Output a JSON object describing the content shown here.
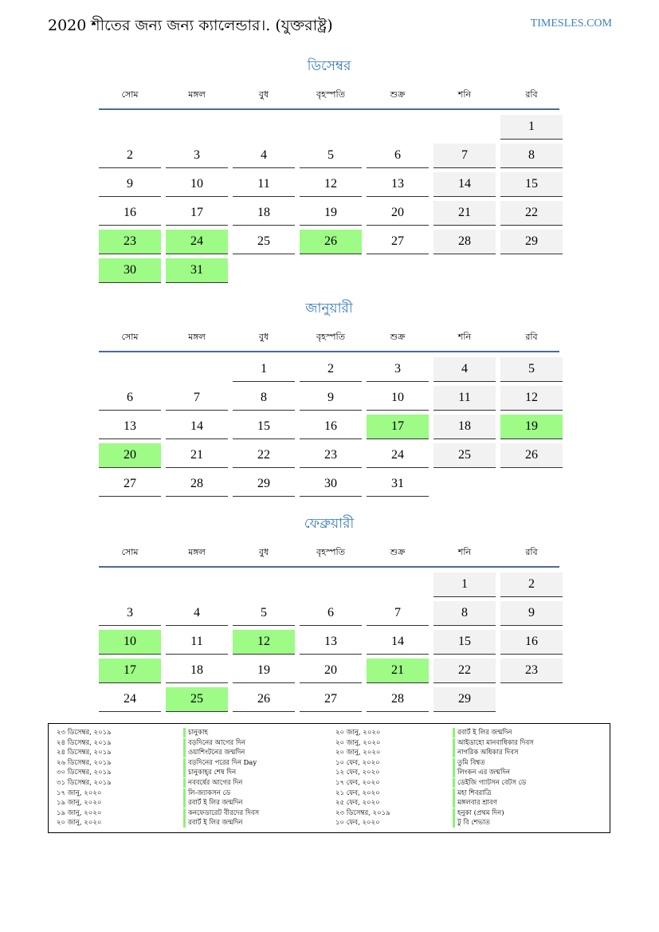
{
  "header": {
    "title": "2020 শীতের জন্য জন্য ক্যালেন্ডার।. (যুক্তরাষ্ট্র)",
    "site": "TIMESLES.COM"
  },
  "colors": {
    "accent": "#2f78c0",
    "holiday": "#9dfb86",
    "weekend": "#f2f2f2",
    "rule": "#4a6a9a"
  },
  "weekdays": [
    "সোম",
    "মঙ্গল",
    "বুধ",
    "বৃহস্পতি",
    "শুক্র",
    "শনি",
    "রবি"
  ],
  "months": [
    {
      "name": "ডিসেম্বর",
      "weeks": [
        [
          null,
          null,
          null,
          null,
          null,
          null,
          1
        ],
        [
          2,
          3,
          4,
          5,
          6,
          7,
          8
        ],
        [
          9,
          10,
          11,
          12,
          13,
          14,
          15
        ],
        [
          16,
          17,
          18,
          19,
          20,
          21,
          22
        ],
        [
          23,
          24,
          25,
          26,
          27,
          28,
          29
        ],
        [
          30,
          31,
          null,
          null,
          null,
          null,
          null
        ]
      ],
      "holidays": [
        23,
        24,
        26,
        30,
        31
      ]
    },
    {
      "name": "জানুয়ারী",
      "weeks": [
        [
          null,
          null,
          1,
          2,
          3,
          4,
          5
        ],
        [
          6,
          7,
          8,
          9,
          10,
          11,
          12
        ],
        [
          13,
          14,
          15,
          16,
          17,
          18,
          19
        ],
        [
          20,
          21,
          22,
          23,
          24,
          25,
          26
        ],
        [
          27,
          28,
          29,
          30,
          31,
          null,
          null
        ]
      ],
      "holidays": [
        17,
        19,
        20
      ]
    },
    {
      "name": "ফেব্রুয়ারী",
      "weeks": [
        [
          null,
          null,
          null,
          null,
          null,
          1,
          2
        ],
        [
          3,
          4,
          5,
          6,
          7,
          8,
          9
        ],
        [
          10,
          11,
          12,
          13,
          14,
          15,
          16
        ],
        [
          17,
          18,
          19,
          20,
          21,
          22,
          23
        ],
        [
          24,
          25,
          26,
          27,
          28,
          29,
          null
        ]
      ],
      "holidays": [
        10,
        12,
        17,
        21,
        25
      ]
    }
  ],
  "legend": [
    {
      "date": "২৩ ডিসেম্বর, ২০১৯",
      "name": "চানুকাহ"
    },
    {
      "date": "২৪ ডিসেম্বর, ২০১৯",
      "name": "বড়দিনের আগের দিন"
    },
    {
      "date": "২৪ ডিসেম্বর, ২০১৯",
      "name": "ওয়াশিংটনের জন্মদিন"
    },
    {
      "date": "২৬ ডিসেম্বর, ২০১৯",
      "name": "বড়দিনের পরের দিন Day"
    },
    {
      "date": "৩০ ডিসেম্বর, ২০১৯",
      "name": "চানুকাহ্‌র শেষ দিন"
    },
    {
      "date": "৩১ ডিসেম্বর, ২০১৯",
      "name": "নববর্ষের আগের দিন"
    },
    {
      "date": "১৭ জানু, ২০২০",
      "name": "লি-জ্যাকসন ডে"
    },
    {
      "date": "১৯ জানু, ২০২০",
      "name": "রবার্ট ই লির জন্মদিন"
    },
    {
      "date": "১৯ জানু, ২০২০",
      "name": "কনফেডারেট বীরদের দিবস"
    },
    {
      "date": "২০ জানু, ২০২০",
      "name": "রবার্ট ই লির জন্মদিন"
    },
    {
      "date": "২০ জানু, ২০২০",
      "name": "রবার্ট ই লির জন্মদিন"
    },
    {
      "date": "২০ জানু, ২০২০",
      "name": "আইডাহো মানবাধিকার দিবস"
    },
    {
      "date": "২০ জানু, ২০২০",
      "name": "নাগরিক অধিকার দিবস"
    },
    {
      "date": "১০ ফেব, ২০২০",
      "name": "তুমি বিশ্বত"
    },
    {
      "date": "১২ ফেব, ২০২০",
      "name": "লিংকন এর জন্মদিন"
    },
    {
      "date": "১৭ ফেব, ২০২০",
      "name": "ডেইজি গ্যাটসন বেটস ডে"
    },
    {
      "date": "২১ ফেব, ২০২০",
      "name": "মহা শিবরাত্রি"
    },
    {
      "date": "২৫ ফেব, ২০২০",
      "name": "মঙ্গলবার শ্রাবণ"
    },
    {
      "date": "২৩ ডিসেম্বর, ২০১৯",
      "name": "হনুকা (প্রথম দিন)"
    },
    {
      "date": "১০ ফেব, ২০২০",
      "name": "টু বি শেভাত"
    }
  ]
}
